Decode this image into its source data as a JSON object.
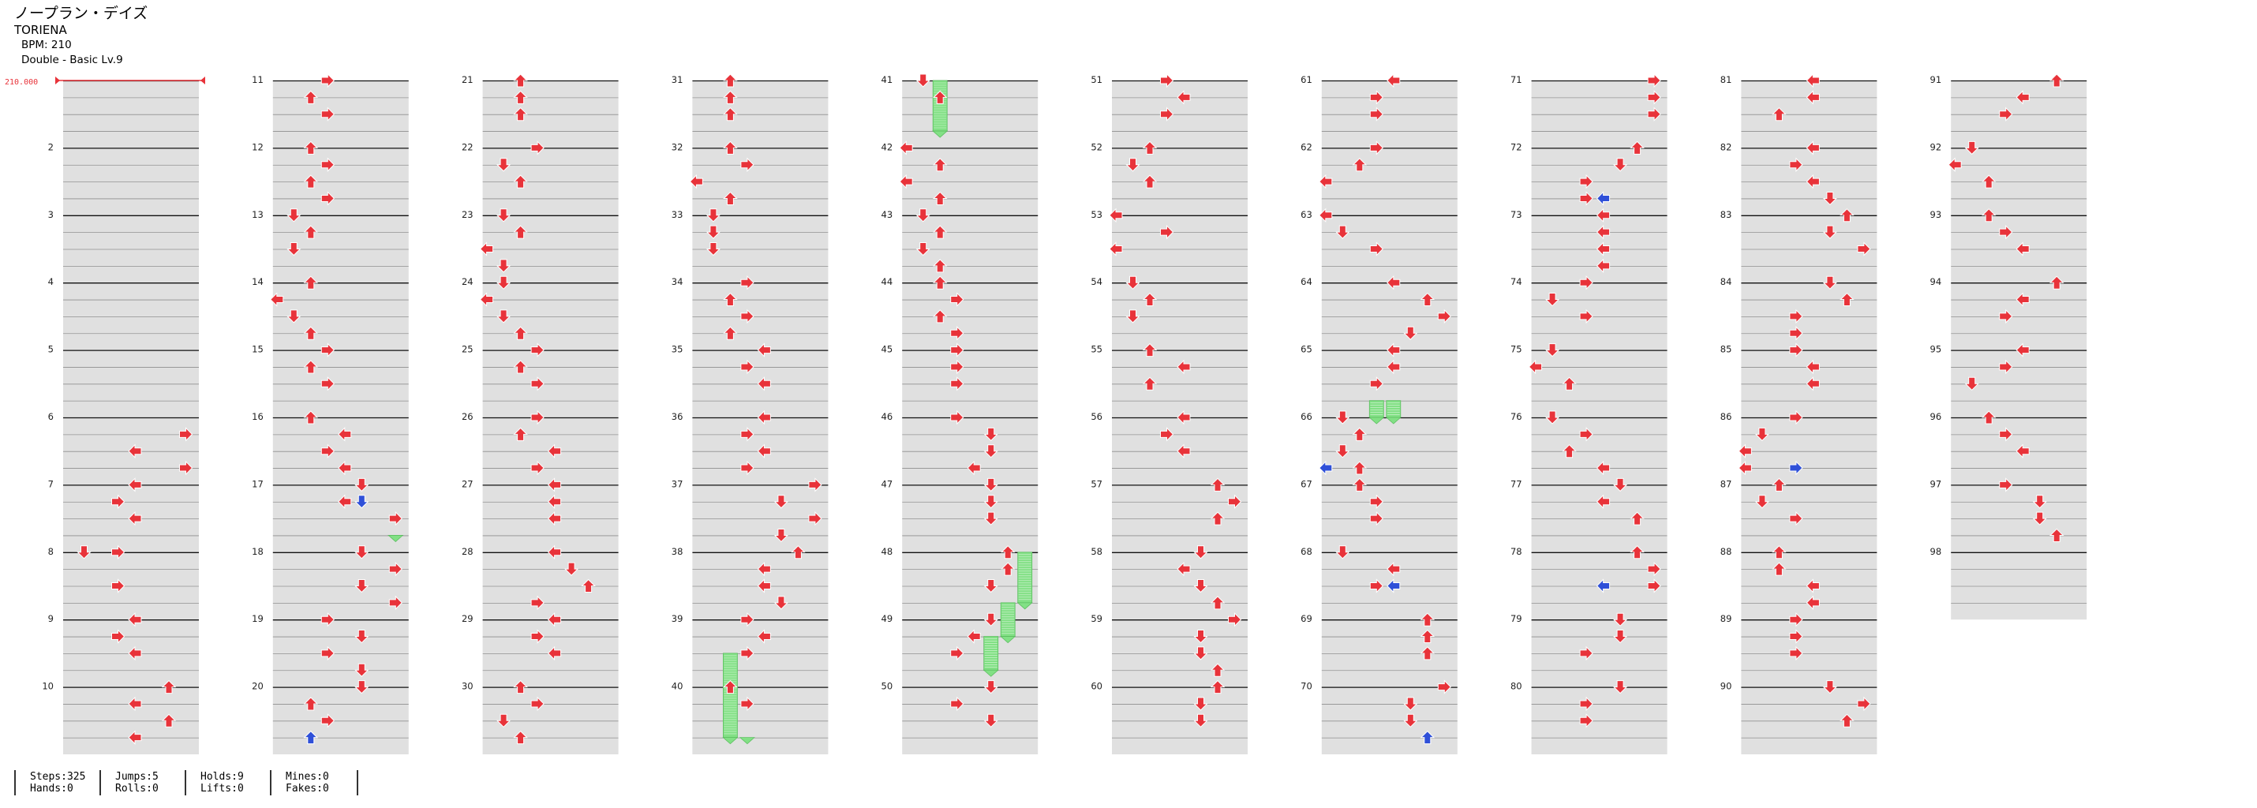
{
  "header": {
    "title": "ノープラン・デイズ",
    "artist": "TORIENA",
    "bpm": "BPM: 210",
    "difficulty": "Double - Basic  Lv.9"
  },
  "bpm_marker": "210.000",
  "stats": {
    "steps": "Steps:325",
    "hands": "Hands:0",
    "jumps": "Jumps:5",
    "rolls": "Rolls:0",
    "holds": "Holds:9",
    "lifts": "Lifts:0",
    "mines": "Mines:0",
    "fakes": "Fakes:0"
  },
  "chart_data": {
    "type": "table",
    "title": "ノープラン・デイズ",
    "style": "Double",
    "measures": 98,
    "measure_labels_shown": [
      2,
      3,
      4,
      5,
      6,
      7,
      8,
      9,
      10,
      11,
      12,
      13,
      14,
      15,
      16,
      17,
      18,
      19,
      20,
      21,
      22,
      23,
      24,
      25,
      26,
      27,
      28,
      29,
      30,
      31,
      32,
      33,
      34,
      35,
      36,
      37,
      38,
      39,
      40,
      41,
      42,
      43,
      44,
      45,
      46,
      47,
      48,
      49,
      50,
      51,
      52,
      53,
      54,
      55,
      56,
      57,
      58,
      59,
      60,
      61,
      62,
      63,
      64,
      65,
      66,
      67,
      68,
      69,
      70,
      71,
      72,
      73,
      74,
      75,
      76,
      77,
      78,
      79,
      80,
      81,
      82,
      83,
      84,
      85,
      86,
      87,
      88,
      89,
      90,
      91,
      92,
      93,
      94,
      95,
      96,
      97,
      98
    ],
    "measures_per_column": 10,
    "beats_per_measure": 4,
    "lanes": [
      "P1-Left",
      "P1-Down",
      "P1-Up",
      "P1-Right",
      "P2-Left",
      "P2-Down",
      "P2-Up",
      "P2-Right"
    ],
    "colors": {
      "quarter": "#e8333a",
      "sixteenth": "#2f50d8",
      "hold": "#82e085"
    },
    "notes": [
      [
        6,
        1,
        7
      ],
      [
        6,
        2,
        4
      ],
      [
        6,
        3,
        7
      ],
      [
        7,
        0,
        4
      ],
      [
        7,
        1,
        3
      ],
      [
        7,
        2,
        4
      ],
      [
        8,
        0,
        1
      ],
      [
        8,
        0,
        3
      ],
      [
        8,
        2,
        3
      ],
      [
        9,
        0,
        4
      ],
      [
        9,
        1,
        3
      ],
      [
        9,
        2,
        4
      ],
      [
        10,
        0,
        6
      ],
      [
        10,
        1,
        4
      ],
      [
        10,
        2,
        6
      ],
      [
        10,
        3,
        4
      ],
      [
        11,
        0,
        3
      ],
      [
        11,
        1,
        2
      ],
      [
        11,
        2,
        3
      ],
      [
        12,
        0,
        2
      ],
      [
        12,
        1,
        3
      ],
      [
        12,
        2,
        2
      ],
      [
        12,
        3,
        3
      ],
      [
        13,
        0,
        1
      ],
      [
        13,
        1,
        2
      ],
      [
        13,
        2,
        1
      ],
      [
        14,
        0,
        2
      ],
      [
        14,
        1,
        0
      ],
      [
        14,
        2,
        1
      ],
      [
        14,
        3,
        2
      ],
      [
        15,
        0,
        3
      ],
      [
        15,
        1,
        2
      ],
      [
        15,
        2,
        3
      ],
      [
        16,
        0,
        2
      ],
      [
        16,
        1,
        4
      ],
      [
        16,
        2,
        3
      ],
      [
        16,
        3,
        4
      ],
      [
        17,
        0,
        5
      ],
      [
        17,
        1,
        4
      ],
      [
        17,
        2,
        7
      ],
      [
        18,
        0,
        5
      ],
      [
        18,
        1,
        7
      ],
      [
        18,
        2,
        5
      ],
      [
        18,
        3,
        7
      ],
      [
        19,
        0,
        3
      ],
      [
        19,
        1,
        5
      ],
      [
        19,
        2,
        3
      ],
      [
        19,
        3,
        5
      ],
      [
        20,
        0,
        5
      ],
      [
        20,
        1,
        2
      ],
      [
        20,
        2,
        3
      ],
      [
        20,
        3,
        2
      ],
      [
        21,
        0,
        2
      ],
      [
        21,
        1,
        2
      ],
      [
        21,
        2,
        2
      ],
      [
        22,
        0,
        3
      ],
      [
        22,
        1,
        1
      ],
      [
        22,
        2,
        2
      ],
      [
        23,
        0,
        1
      ],
      [
        23,
        1,
        2
      ],
      [
        23,
        2,
        0
      ],
      [
        23,
        3,
        1
      ],
      [
        24,
        0,
        1
      ],
      [
        24,
        1,
        0
      ],
      [
        24,
        2,
        1
      ],
      [
        24,
        3,
        2
      ],
      [
        25,
        0,
        3
      ],
      [
        25,
        1,
        2
      ],
      [
        25,
        2,
        3
      ],
      [
        26,
        0,
        3
      ],
      [
        26,
        1,
        2
      ],
      [
        26,
        2,
        4
      ],
      [
        26,
        3,
        3
      ],
      [
        27,
        0,
        4
      ],
      [
        27,
        1,
        4
      ],
      [
        27,
        2,
        4
      ],
      [
        28,
        0,
        4
      ],
      [
        28,
        1,
        5
      ],
      [
        28,
        2,
        6
      ],
      [
        28,
        3,
        3
      ],
      [
        29,
        0,
        4
      ],
      [
        29,
        1,
        3
      ],
      [
        29,
        2,
        4
      ],
      [
        30,
        0,
        2
      ],
      [
        30,
        1,
        3
      ],
      [
        30,
        2,
        1
      ],
      [
        30,
        3,
        2
      ],
      [
        31,
        0,
        2
      ],
      [
        31,
        1,
        2
      ],
      [
        31,
        2,
        2
      ],
      [
        32,
        0,
        2
      ],
      [
        32,
        1,
        3
      ],
      [
        32,
        2,
        0
      ],
      [
        32,
        3,
        2
      ],
      [
        33,
        0,
        1
      ],
      [
        33,
        1,
        1
      ],
      [
        33,
        2,
        1
      ],
      [
        34,
        0,
        3
      ],
      [
        34,
        1,
        2
      ],
      [
        34,
        2,
        3
      ],
      [
        34,
        3,
        2
      ],
      [
        35,
        0,
        4
      ],
      [
        35,
        1,
        3
      ],
      [
        35,
        2,
        4
      ],
      [
        36,
        0,
        4
      ],
      [
        36,
        1,
        3
      ],
      [
        36,
        2,
        4
      ],
      [
        36,
        3,
        3
      ],
      [
        37,
        0,
        7
      ],
      [
        37,
        1,
        5
      ],
      [
        37,
        2,
        7
      ],
      [
        37,
        3,
        5
      ],
      [
        38,
        0,
        6
      ],
      [
        38,
        1,
        4
      ],
      [
        38,
        2,
        4
      ],
      [
        38,
        3,
        5
      ],
      [
        39,
        0,
        3
      ],
      [
        39,
        1,
        4
      ],
      [
        39,
        2,
        3
      ],
      [
        40,
        0,
        2
      ],
      [
        40,
        1,
        3
      ],
      [
        41,
        0,
        1
      ],
      [
        41,
        1,
        2
      ],
      [
        42,
        0,
        0
      ],
      [
        42,
        1,
        2
      ],
      [
        42,
        2,
        0
      ],
      [
        42,
        3,
        2
      ],
      [
        43,
        0,
        1
      ],
      [
        43,
        1,
        2
      ],
      [
        43,
        2,
        1
      ],
      [
        43,
        3,
        2
      ],
      [
        44,
        0,
        2
      ],
      [
        44,
        1,
        3
      ],
      [
        44,
        2,
        2
      ],
      [
        44,
        3,
        3
      ],
      [
        45,
        0,
        3
      ],
      [
        45,
        1,
        3
      ],
      [
        45,
        2,
        3
      ],
      [
        46,
        0,
        3
      ],
      [
        46,
        1,
        5
      ],
      [
        46,
        2,
        5
      ],
      [
        46,
        3,
        4
      ],
      [
        47,
        0,
        5
      ],
      [
        47,
        1,
        5
      ],
      [
        47,
        2,
        5
      ],
      [
        48,
        0,
        6
      ],
      [
        48,
        1,
        6
      ],
      [
        48,
        2,
        5
      ],
      [
        49,
        0,
        5
      ],
      [
        49,
        1,
        4
      ],
      [
        49,
        2,
        3
      ],
      [
        50,
        0,
        5
      ],
      [
        50,
        1,
        3
      ],
      [
        50,
        2,
        5
      ],
      [
        51,
        0,
        3
      ],
      [
        51,
        1,
        4
      ],
      [
        51,
        2,
        3
      ],
      [
        52,
        0,
        2
      ],
      [
        52,
        1,
        1
      ],
      [
        52,
        2,
        2
      ],
      [
        53,
        0,
        0
      ],
      [
        53,
        1,
        3
      ],
      [
        53,
        2,
        0
      ],
      [
        54,
        0,
        1
      ],
      [
        54,
        1,
        2
      ],
      [
        54,
        2,
        1
      ],
      [
        55,
        0,
        2
      ],
      [
        55,
        1,
        4
      ],
      [
        55,
        2,
        2
      ],
      [
        56,
        0,
        4
      ],
      [
        56,
        1,
        3
      ],
      [
        56,
        2,
        4
      ],
      [
        57,
        0,
        6
      ],
      [
        57,
        1,
        7
      ],
      [
        57,
        2,
        6
      ],
      [
        58,
        0,
        5
      ],
      [
        58,
        1,
        4
      ],
      [
        58,
        2,
        5
      ],
      [
        58,
        3,
        6
      ],
      [
        59,
        0,
        7
      ],
      [
        59,
        1,
        5
      ],
      [
        59,
        2,
        5
      ],
      [
        59,
        3,
        6
      ],
      [
        60,
        0,
        6
      ],
      [
        60,
        1,
        5
      ],
      [
        60,
        2,
        5
      ],
      [
        61,
        0,
        4
      ],
      [
        61,
        1,
        3
      ],
      [
        61,
        2,
        3
      ],
      [
        62,
        0,
        3
      ],
      [
        62,
        1,
        2
      ],
      [
        62,
        2,
        0
      ],
      [
        63,
        0,
        0
      ],
      [
        63,
        1,
        1
      ],
      [
        63,
        2,
        3
      ],
      [
        64,
        0,
        4
      ],
      [
        64,
        1,
        6
      ],
      [
        64,
        2,
        7
      ],
      [
        64,
        3,
        5
      ],
      [
        65,
        0,
        4
      ],
      [
        65,
        1,
        4
      ],
      [
        65,
        2,
        3
      ],
      [
        66,
        0,
        1
      ],
      [
        66,
        1,
        2
      ],
      [
        66,
        2,
        1
      ],
      [
        66,
        3,
        2
      ],
      [
        67,
        0,
        2
      ],
      [
        67,
        1,
        3
      ],
      [
        67,
        2,
        3
      ],
      [
        68,
        0,
        1
      ],
      [
        68,
        1,
        4
      ],
      [
        68,
        2,
        3
      ],
      [
        69,
        0,
        6
      ],
      [
        69,
        1,
        6
      ],
      [
        69,
        2,
        6
      ],
      [
        70,
        0,
        7
      ],
      [
        70,
        1,
        5
      ],
      [
        70,
        2,
        5
      ],
      [
        71,
        0,
        7
      ],
      [
        71,
        1,
        7
      ],
      [
        71,
        2,
        7
      ],
      [
        72,
        0,
        6
      ],
      [
        72,
        1,
        5
      ],
      [
        72,
        2,
        3
      ],
      [
        72,
        3,
        3
      ],
      [
        73,
        0,
        4
      ],
      [
        73,
        1,
        4
      ],
      [
        73,
        2,
        4
      ],
      [
        73,
        3,
        4
      ],
      [
        74,
        0,
        3
      ],
      [
        74,
        1,
        1
      ],
      [
        74,
        2,
        3
      ],
      [
        75,
        0,
        1
      ],
      [
        75,
        1,
        0
      ],
      [
        75,
        2,
        2
      ],
      [
        76,
        0,
        1
      ],
      [
        76,
        1,
        3
      ],
      [
        76,
        2,
        2
      ],
      [
        76,
        3,
        4
      ],
      [
        77,
        0,
        5
      ],
      [
        77,
        1,
        4
      ],
      [
        77,
        2,
        6
      ],
      [
        78,
        0,
        6
      ],
      [
        78,
        1,
        7
      ],
      [
        78,
        2,
        7
      ],
      [
        79,
        0,
        5
      ],
      [
        79,
        1,
        5
      ],
      [
        79,
        2,
        3
      ],
      [
        80,
        0,
        5
      ],
      [
        80,
        1,
        3
      ],
      [
        80,
        2,
        3
      ],
      [
        81,
        0,
        4
      ],
      [
        81,
        1,
        4
      ],
      [
        81,
        2,
        2
      ],
      [
        82,
        0,
        4
      ],
      [
        82,
        1,
        3
      ],
      [
        82,
        2,
        4
      ],
      [
        82,
        3,
        5
      ],
      [
        83,
        0,
        6
      ],
      [
        83,
        1,
        5
      ],
      [
        83,
        2,
        7
      ],
      [
        84,
        0,
        5
      ],
      [
        84,
        1,
        6
      ],
      [
        84,
        2,
        3
      ],
      [
        84,
        3,
        3
      ],
      [
        85,
        0,
        3
      ],
      [
        85,
        1,
        4
      ],
      [
        85,
        2,
        4
      ],
      [
        86,
        0,
        3
      ],
      [
        86,
        1,
        1
      ],
      [
        86,
        2,
        0
      ],
      [
        86,
        3,
        0
      ],
      [
        87,
        0,
        2
      ],
      [
        87,
        1,
        1
      ],
      [
        87,
        2,
        3
      ],
      [
        88,
        0,
        2
      ],
      [
        88,
        1,
        2
      ],
      [
        88,
        2,
        4
      ],
      [
        88,
        3,
        4
      ],
      [
        89,
        0,
        3
      ],
      [
        89,
        1,
        3
      ],
      [
        89,
        2,
        3
      ],
      [
        90,
        0,
        5
      ],
      [
        90,
        1,
        7
      ],
      [
        90,
        2,
        6
      ],
      [
        91,
        0,
        6
      ],
      [
        91,
        1,
        4
      ],
      [
        91,
        2,
        3
      ],
      [
        92,
        0,
        1
      ],
      [
        92,
        1,
        0
      ],
      [
        92,
        2,
        2
      ],
      [
        93,
        0,
        2
      ],
      [
        93,
        1,
        3
      ],
      [
        93,
        2,
        4
      ],
      [
        94,
        0,
        6
      ],
      [
        94,
        1,
        4
      ],
      [
        94,
        2,
        3
      ],
      [
        95,
        0,
        4
      ],
      [
        95,
        1,
        3
      ],
      [
        95,
        2,
        1
      ],
      [
        96,
        0,
        2
      ],
      [
        96,
        1,
        3
      ],
      [
        96,
        2,
        4
      ],
      [
        97,
        0,
        3
      ],
      [
        97,
        1,
        5
      ],
      [
        97,
        2,
        5
      ],
      [
        97,
        3,
        6
      ]
    ],
    "sixteenth_notes": [
      [
        17,
        1,
        5
      ],
      [
        20,
        3,
        2
      ],
      [
        66,
        3,
        0
      ],
      [
        68,
        2,
        4
      ],
      [
        70,
        3,
        6
      ],
      [
        72,
        3,
        4
      ],
      [
        78,
        2,
        4
      ],
      [
        86,
        3,
        3
      ]
    ],
    "holds": [
      [
        17,
        3,
        17,
        3,
        7
      ],
      [
        39,
        2,
        40,
        3,
        2
      ],
      [
        40,
        3,
        40,
        3,
        3
      ],
      [
        41,
        0,
        41,
        3,
        2
      ],
      [
        48,
        0,
        48,
        3,
        7
      ],
      [
        48,
        3,
        49,
        1,
        6
      ],
      [
        49,
        1,
        49,
        3,
        5
      ],
      [
        65,
        3,
        66,
        0,
        3
      ],
      [
        65,
        3,
        66,
        0,
        4
      ]
    ]
  }
}
